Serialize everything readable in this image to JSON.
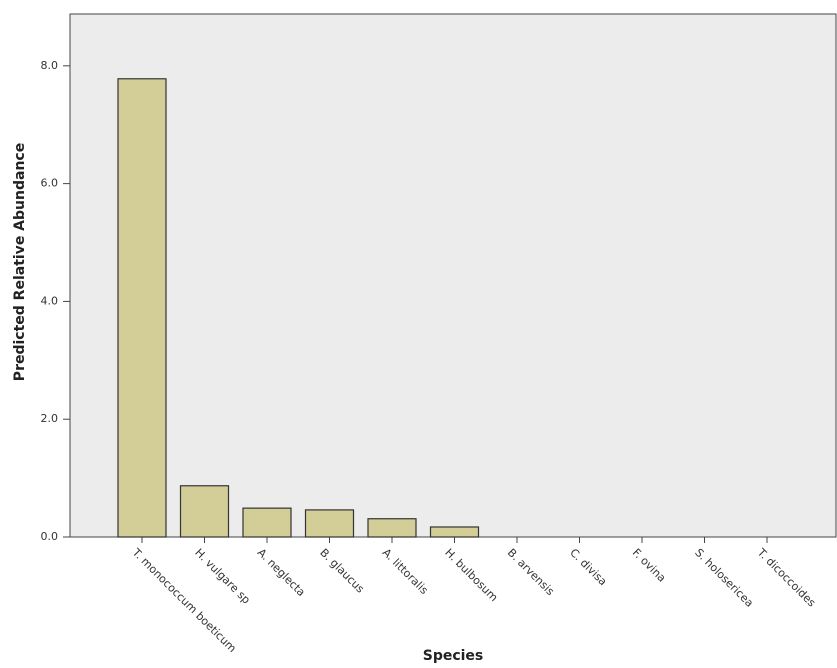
{
  "chart_data": {
    "type": "bar",
    "x_label": "Species",
    "y_label": "Predicted Relative Abundance",
    "categories": [
      "T. monococcum boeticum",
      "H. vulgare sp",
      "A. neglecta",
      "B. glaucus",
      "A. littoralis",
      "H. bulbosum",
      "B. arvensis",
      "C. divisa",
      "F. ovina",
      "S. holosericea",
      "T. dicoccoides"
    ],
    "values": [
      7.78,
      0.87,
      0.49,
      0.46,
      0.31,
      0.17,
      0,
      0,
      0,
      0,
      0
    ],
    "color": "#d3cd97",
    "ylim": [
      0,
      8.88
    ],
    "yticks": [
      {
        "value": 0,
        "label": "0.0"
      },
      {
        "value": 2,
        "label": "2.0"
      },
      {
        "value": 4,
        "label": "4.0"
      },
      {
        "value": 6,
        "label": "6.0"
      },
      {
        "value": 8,
        "label": "8.0"
      }
    ],
    "grid": false
  }
}
